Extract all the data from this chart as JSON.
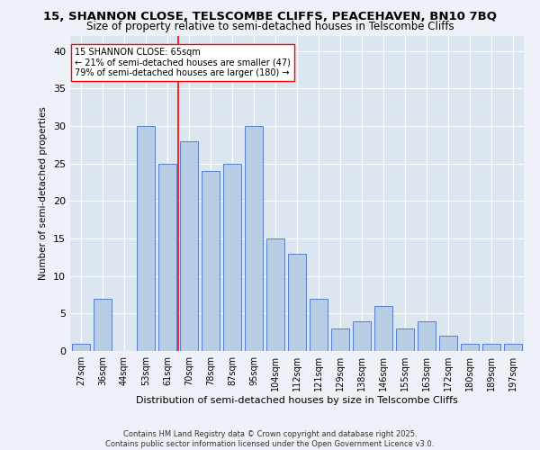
{
  "title": "15, SHANNON CLOSE, TELSCOMBE CLIFFS, PEACEHAVEN, BN10 7BQ",
  "subtitle": "Size of property relative to semi-detached houses in Telscombe Cliffs",
  "xlabel": "Distribution of semi-detached houses by size in Telscombe Cliffs",
  "ylabel": "Number of semi-detached properties",
  "categories": [
    "27sqm",
    "36sqm",
    "44sqm",
    "53sqm",
    "61sqm",
    "70sqm",
    "78sqm",
    "87sqm",
    "95sqm",
    "104sqm",
    "112sqm",
    "121sqm",
    "129sqm",
    "138sqm",
    "146sqm",
    "155sqm",
    "163sqm",
    "172sqm",
    "180sqm",
    "189sqm",
    "197sqm"
  ],
  "values": [
    1,
    7,
    0,
    30,
    25,
    28,
    24,
    25,
    30,
    15,
    13,
    7,
    3,
    4,
    6,
    3,
    4,
    2,
    1,
    1,
    1
  ],
  "bar_color": "#b8cce4",
  "bar_edge_color": "#4472c4",
  "annotation_text": "15 SHANNON CLOSE: 65sqm\n← 21% of semi-detached houses are smaller (47)\n79% of semi-detached houses are larger (180) →",
  "ylim": [
    0,
    42
  ],
  "yticks": [
    0,
    5,
    10,
    15,
    20,
    25,
    30,
    35,
    40
  ],
  "footer": "Contains HM Land Registry data © Crown copyright and database right 2025.\nContains public sector information licensed under the Open Government Licence v3.0.",
  "bg_color": "#eef2f8",
  "plot_bg_color": "#dce6f1",
  "ref_line_index": 4.5
}
